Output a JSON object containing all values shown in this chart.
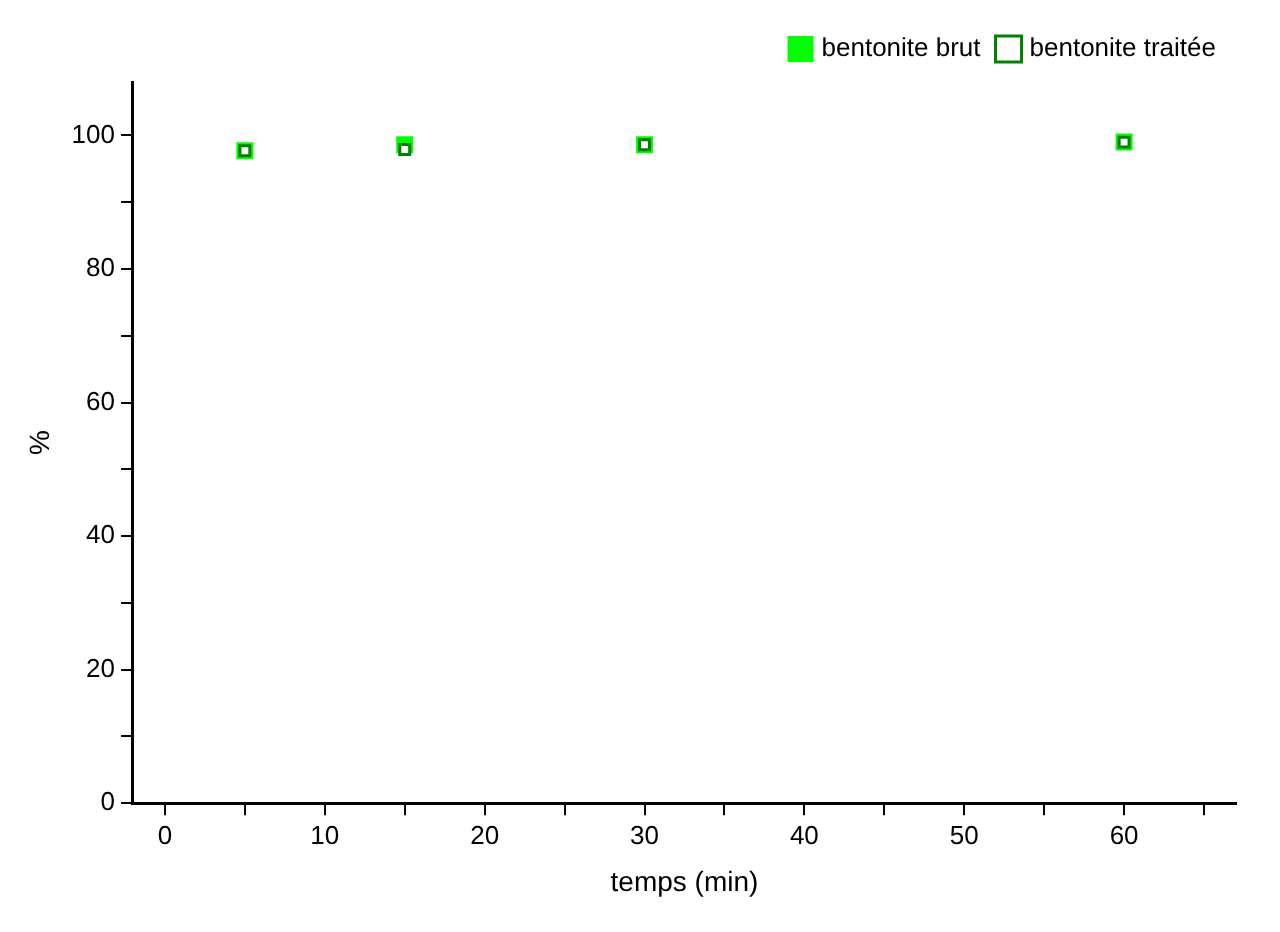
{
  "chart_data": {
    "type": "scatter",
    "xlabel": "temps (min)",
    "ylabel": "%",
    "marker": "square",
    "legend": "top right",
    "x": [
      5,
      15,
      30,
      60
    ],
    "series": [
      {
        "name": "bentonite brut",
        "color": "#00ff00",
        "values": [
          97.7,
          98.6,
          98.6,
          99.0
        ]
      },
      {
        "name": "bentonite traitée",
        "color": "#008000",
        "values": [
          97.7,
          97.9,
          98.6,
          99.0
        ]
      }
    ],
    "xlim": [
      -2,
      67
    ],
    "xticks": [
      0,
      {
        "value": 5,
        "label": null
      },
      10,
      {
        "value": 15,
        "label": null
      },
      20,
      {
        "value": 25,
        "label": null
      },
      30,
      {
        "value": 35,
        "label": null
      },
      40,
      {
        "value": 45,
        "label": null
      },
      50,
      {
        "value": 55,
        "label": null
      },
      60,
      {
        "value": 65,
        "label": null
      }
    ],
    "ylim": [
      0,
      108
    ],
    "yticks": [
      0,
      {
        "value": 10,
        "label": null
      },
      20,
      {
        "value": 30,
        "label": null
      },
      40,
      {
        "value": 50,
        "label": null
      },
      60,
      {
        "value": 70,
        "label": null
      },
      80,
      {
        "value": 90,
        "label": null
      },
      100
    ]
  }
}
